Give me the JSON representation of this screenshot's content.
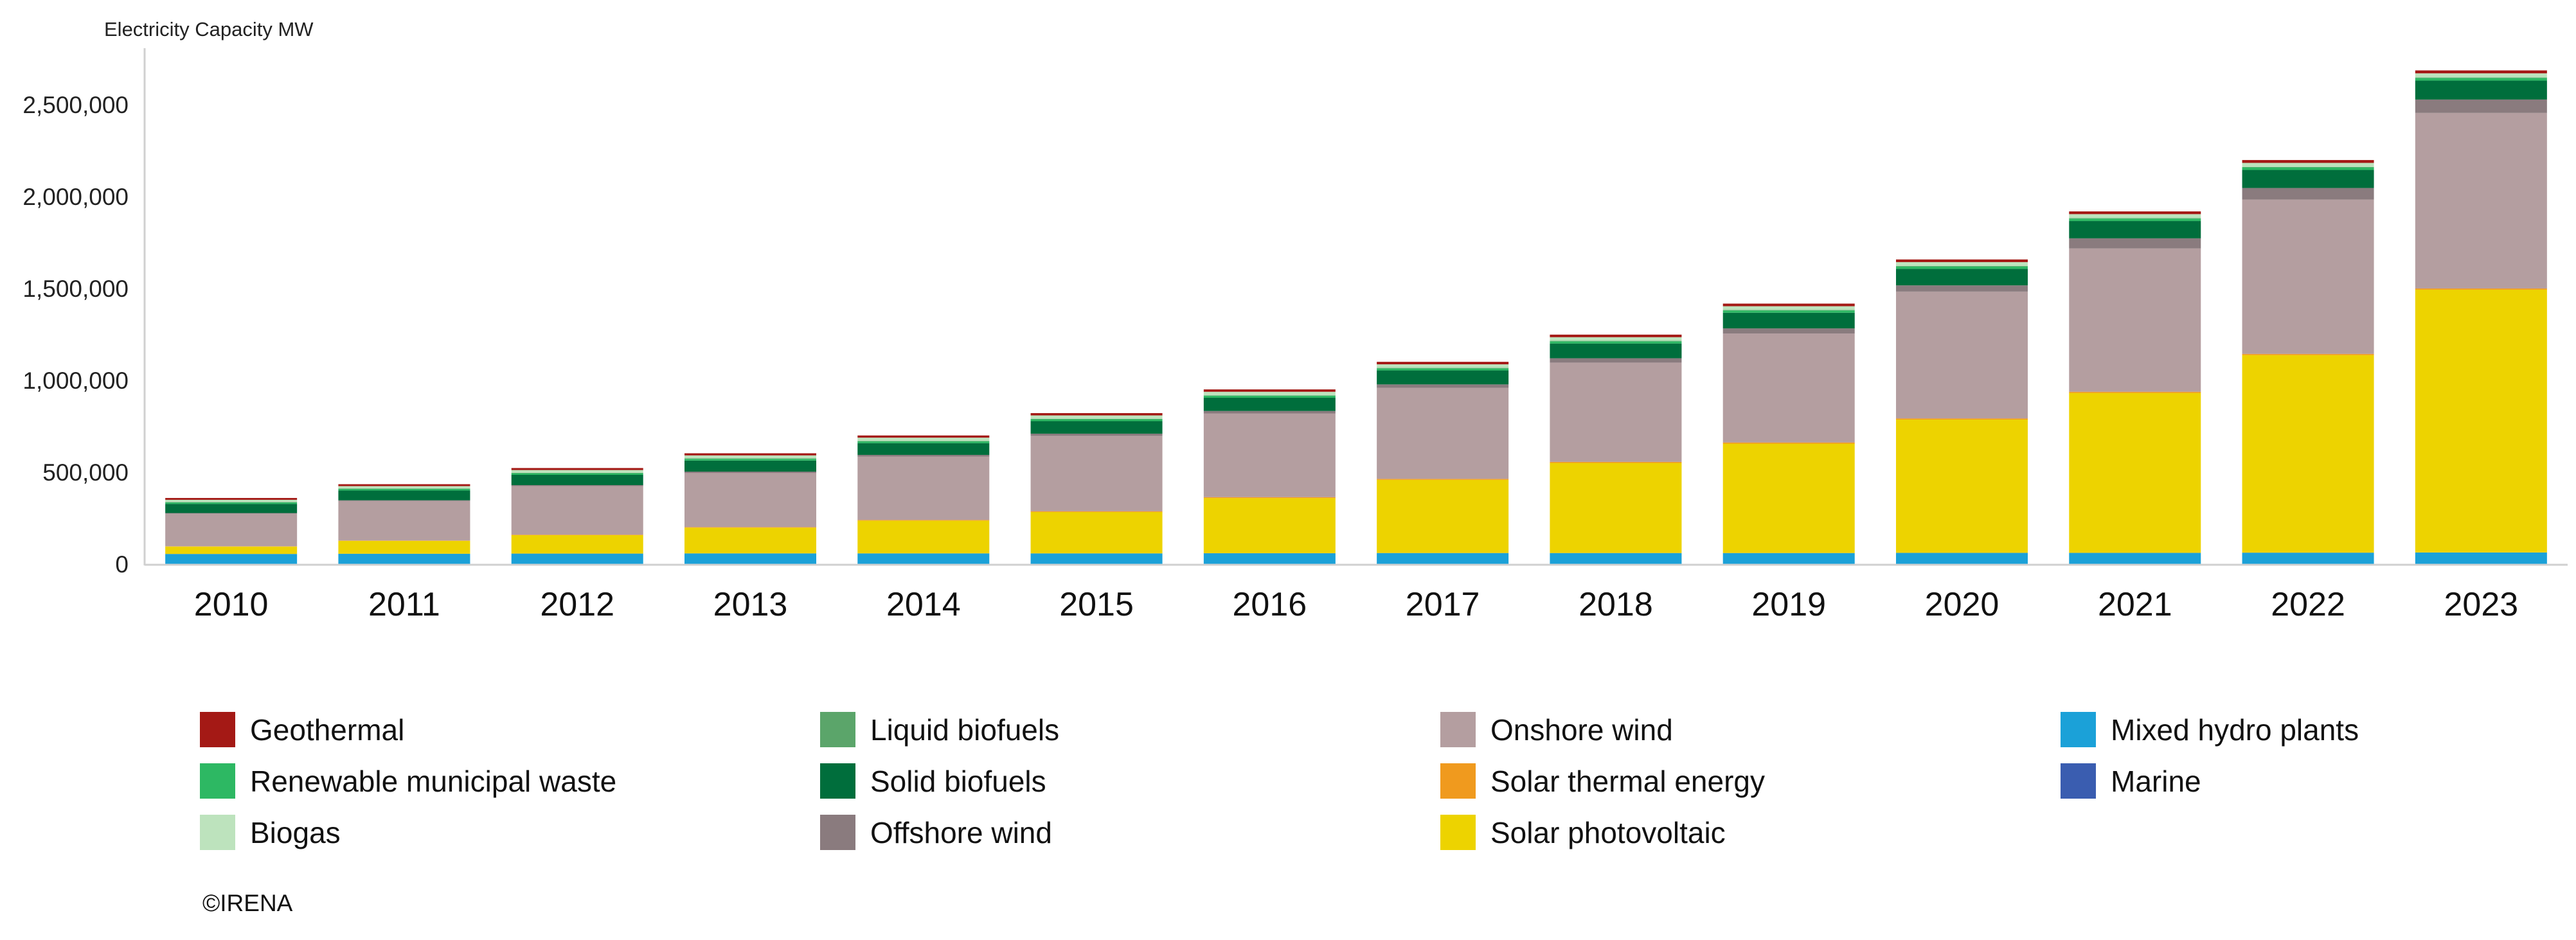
{
  "chart_data": {
    "type": "bar",
    "stacked": true,
    "title": "",
    "ylabel": "Electricity Capacity MW",
    "xlabel": "",
    "ylim": [
      0,
      2750000
    ],
    "yticks": [
      0,
      500000,
      1000000,
      1500000,
      2000000,
      2500000
    ],
    "ytick_labels": [
      "0",
      "500,000",
      "1,000,000",
      "1,500,000",
      "2,000,000",
      "2,500,000"
    ],
    "grid": false,
    "legend_position": "bottom",
    "categories": [
      "2010",
      "2011",
      "2012",
      "2013",
      "2014",
      "2015",
      "2016",
      "2017",
      "2018",
      "2019",
      "2020",
      "2021",
      "2022",
      "2023"
    ],
    "series": [
      {
        "name": "Mixed hydro plants",
        "color": "#1BA1D8",
        "values": [
          55000,
          56000,
          57000,
          58000,
          58000,
          58000,
          59000,
          60000,
          60000,
          60000,
          61000,
          61000,
          62000,
          63000
        ]
      },
      {
        "name": "Marine",
        "color": "#3A5DB0",
        "values": [
          500,
          500,
          500,
          500,
          500,
          500,
          500,
          500,
          500,
          500,
          500,
          500,
          500,
          500
        ]
      },
      {
        "name": "Solar photovoltaic",
        "color": "#EDD300",
        "values": [
          40000,
          70000,
          100000,
          140000,
          178000,
          225000,
          300000,
          398000,
          490000,
          595000,
          725000,
          870000,
          1075000,
          1430000
        ]
      },
      {
        "name": "Solar thermal energy",
        "color": "#F09A1E",
        "values": [
          1500,
          2000,
          2500,
          3000,
          4000,
          4500,
          5000,
          5500,
          6000,
          6500,
          6500,
          6500,
          6500,
          6800
        ]
      },
      {
        "name": "Onshore wind",
        "color": "#B49EA0",
        "values": [
          178000,
          215000,
          265000,
          295000,
          345000,
          410000,
          455000,
          495000,
          540000,
          593000,
          690000,
          780000,
          840000,
          955000
        ]
      },
      {
        "name": "Offshore wind",
        "color": "#8A7B7E",
        "values": [
          3000,
          4000,
          5000,
          7000,
          9000,
          12000,
          14000,
          19000,
          24000,
          28000,
          34000,
          55000,
          63000,
          73000
        ]
      },
      {
        "name": "Solid biofuels",
        "color": "#006E3C",
        "values": [
          50000,
          53000,
          56000,
          60000,
          64000,
          68000,
          72000,
          76000,
          80000,
          85000,
          90000,
          94000,
          98000,
          103000
        ]
      },
      {
        "name": "Renewable municipal waste",
        "color": "#2DB863",
        "values": [
          8000,
          8500,
          9000,
          9500,
          10000,
          10500,
          11000,
          11500,
          12000,
          12500,
          13000,
          13500,
          14000,
          14500
        ]
      },
      {
        "name": "Liquid biofuels",
        "color": "#5BA56A",
        "values": [
          2000,
          2000,
          2000,
          2200,
          2200,
          2300,
          2300,
          2400,
          2400,
          2500,
          2500,
          2500,
          2500,
          2500
        ]
      },
      {
        "name": "Biogas",
        "color": "#BDE3BD",
        "values": [
          12000,
          13500,
          15000,
          16500,
          17500,
          18500,
          19000,
          19500,
          20000,
          20500,
          21000,
          21500,
          22000,
          22500
        ]
      },
      {
        "name": "Geothermal",
        "color": "#A41915",
        "values": [
          10000,
          10500,
          11000,
          11500,
          12000,
          12500,
          13000,
          13500,
          14000,
          14200,
          14500,
          15000,
          15500,
          16000
        ]
      }
    ],
    "legend": [
      {
        "name": "Geothermal",
        "color": "#A41915"
      },
      {
        "name": "Renewable municipal waste",
        "color": "#2DB863"
      },
      {
        "name": "Biogas",
        "color": "#BDE3BD"
      },
      {
        "name": "Liquid biofuels",
        "color": "#5BA56A"
      },
      {
        "name": "Solid biofuels",
        "color": "#006E3C"
      },
      {
        "name": "Offshore wind",
        "color": "#8A7B7E"
      },
      {
        "name": "Onshore wind",
        "color": "#B49EA0"
      },
      {
        "name": "Solar thermal energy",
        "color": "#F09A1E"
      },
      {
        "name": "Solar photovoltaic",
        "color": "#EDD300"
      },
      {
        "name": "Mixed hydro plants",
        "color": "#1BA1D8"
      },
      {
        "name": "Marine",
        "color": "#3A5DB0"
      }
    ],
    "credit": "©IRENA"
  }
}
